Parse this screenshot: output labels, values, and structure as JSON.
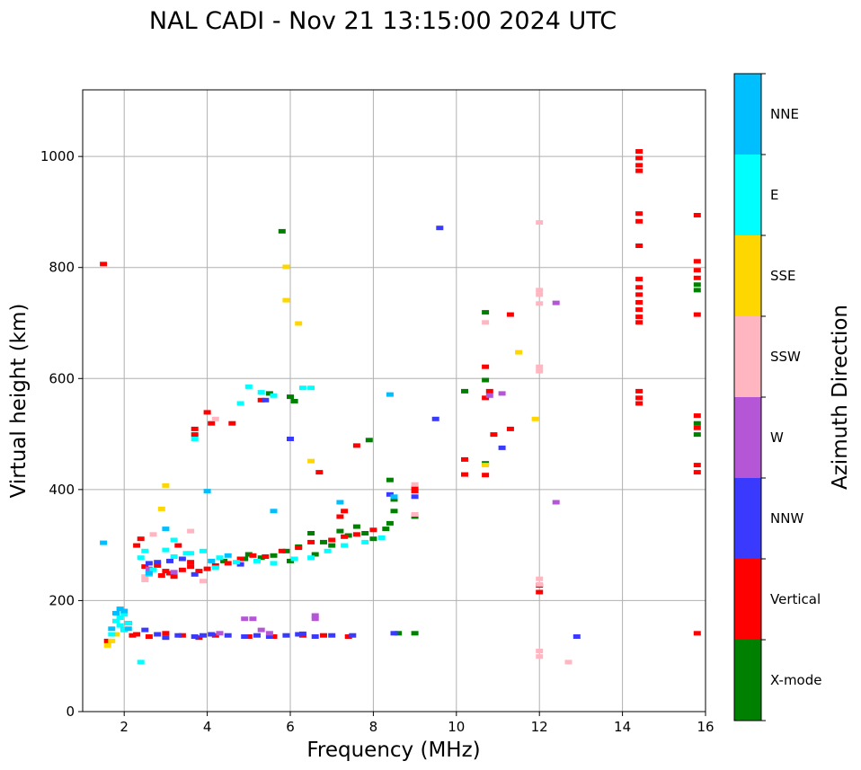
{
  "chart_data": {
    "type": "scatter",
    "title": "NAL CADI - Nov 21 13:15:00 2024 UTC",
    "xlabel": "Frequency (MHz)",
    "ylabel": "Virtual height (km)",
    "xlim": [
      1,
      16
    ],
    "ylim": [
      0,
      1120
    ],
    "xticks": [
      2,
      4,
      6,
      8,
      10,
      12,
      14,
      16
    ],
    "yticks": [
      0,
      200,
      400,
      600,
      800,
      1000
    ],
    "grid": true,
    "colorbar": {
      "title": "Azimuth Direction",
      "categories": [
        {
          "name": "X-mode",
          "color": "#008000"
        },
        {
          "name": "Vertical",
          "color": "#ff0000"
        },
        {
          "name": "NNW",
          "color": "#3a3aff"
        },
        {
          "name": "W",
          "color": "#b456d6"
        },
        {
          "name": "SSW",
          "color": "#ffb6c1"
        },
        {
          "name": "SSE",
          "color": "#ffd700"
        },
        {
          "name": "E",
          "color": "#00ffff"
        },
        {
          "name": "NNE",
          "color": "#00bfff"
        }
      ]
    },
    "series": [
      {
        "name": "X-mode",
        "points": [
          [
            5.8,
            866
          ],
          [
            6.0,
            568
          ],
          [
            6.1,
            560
          ],
          [
            7.9,
            490
          ],
          [
            8.4,
            418
          ],
          [
            8.4,
            340
          ],
          [
            8.5,
            383
          ],
          [
            8.5,
            362
          ],
          [
            9.0,
            352
          ],
          [
            9.0,
            142
          ],
          [
            8.6,
            142
          ],
          [
            10.2,
            578
          ],
          [
            10.7,
            720
          ],
          [
            10.7,
            598
          ],
          [
            10.7,
            448
          ],
          [
            5.5,
            574
          ],
          [
            6.5,
            322
          ],
          [
            6.8,
            306
          ],
          [
            7.2,
            326
          ],
          [
            7.6,
            334
          ],
          [
            8.0,
            312
          ],
          [
            8.3,
            330
          ],
          [
            7.0,
            300
          ],
          [
            6.2,
            298
          ],
          [
            5.9,
            290
          ],
          [
            5.3,
            278
          ],
          [
            4.9,
            276
          ],
          [
            4.4,
            272
          ],
          [
            5.0,
            284
          ],
          [
            5.6,
            282
          ],
          [
            6.0,
            272
          ],
          [
            6.6,
            284
          ],
          [
            7.4,
            318
          ],
          [
            7.8,
            322
          ],
          [
            15.8,
            770
          ],
          [
            15.8,
            760
          ],
          [
            15.8,
            520
          ],
          [
            15.8,
            500
          ]
        ]
      },
      {
        "name": "Vertical",
        "points": [
          [
            1.5,
            807
          ],
          [
            2.3,
            300
          ],
          [
            2.4,
            312
          ],
          [
            2.5,
            262
          ],
          [
            2.6,
            250
          ],
          [
            2.8,
            264
          ],
          [
            2.9,
            246
          ],
          [
            3.0,
            254
          ],
          [
            3.1,
            250
          ],
          [
            3.2,
            244
          ],
          [
            3.4,
            256
          ],
          [
            3.6,
            262
          ],
          [
            3.8,
            254
          ],
          [
            4.0,
            258
          ],
          [
            4.2,
            264
          ],
          [
            4.5,
            268
          ],
          [
            4.8,
            276
          ],
          [
            5.1,
            282
          ],
          [
            5.4,
            280
          ],
          [
            5.8,
            290
          ],
          [
            6.2,
            296
          ],
          [
            6.5,
            306
          ],
          [
            7.0,
            310
          ],
          [
            7.3,
            316
          ],
          [
            7.6,
            320
          ],
          [
            8.0,
            328
          ],
          [
            3.3,
            300
          ],
          [
            3.6,
            270
          ],
          [
            4.1,
            520
          ],
          [
            4.0,
            540
          ],
          [
            3.7,
            510
          ],
          [
            3.7,
            500
          ],
          [
            4.6,
            520
          ],
          [
            5.3,
            562
          ],
          [
            6.7,
            432
          ],
          [
            7.6,
            480
          ],
          [
            7.3,
            362
          ],
          [
            7.2,
            352
          ],
          [
            9.0,
            404
          ],
          [
            9.0,
            398
          ],
          [
            10.2,
            428
          ],
          [
            10.2,
            455
          ],
          [
            10.7,
            622
          ],
          [
            10.7,
            566
          ],
          [
            10.8,
            578
          ],
          [
            10.7,
            427
          ],
          [
            10.9,
            500
          ],
          [
            11.3,
            716
          ],
          [
            11.3,
            510
          ],
          [
            12.0,
            216
          ],
          [
            12.0,
            228
          ],
          [
            14.4,
            1010
          ],
          [
            14.4,
            998
          ],
          [
            14.4,
            985
          ],
          [
            14.4,
            975
          ],
          [
            14.4,
            898
          ],
          [
            14.4,
            884
          ],
          [
            14.4,
            840
          ],
          [
            14.4,
            780
          ],
          [
            14.4,
            765
          ],
          [
            14.4,
            752
          ],
          [
            14.4,
            738
          ],
          [
            14.4,
            725
          ],
          [
            14.4,
            712
          ],
          [
            14.4,
            702
          ],
          [
            14.4,
            578
          ],
          [
            14.4,
            566
          ],
          [
            14.4,
            556
          ],
          [
            15.8,
            895
          ],
          [
            15.8,
            812
          ],
          [
            15.8,
            796
          ],
          [
            15.8,
            782
          ],
          [
            15.8,
            716
          ],
          [
            15.8,
            534
          ],
          [
            15.8,
            512
          ],
          [
            15.8,
            445
          ],
          [
            15.8,
            432
          ],
          [
            15.8,
            142
          ],
          [
            2.0,
            148
          ],
          [
            2.3,
            140
          ],
          [
            2.6,
            136
          ],
          [
            3.0,
            142
          ],
          [
            3.4,
            138
          ],
          [
            3.8,
            134
          ],
          [
            4.2,
            138
          ],
          [
            5.0,
            136
          ],
          [
            5.6,
            136
          ],
          [
            6.3,
            138
          ],
          [
            6.8,
            138
          ],
          [
            7.4,
            136
          ],
          [
            1.6,
            128
          ],
          [
            2.1,
            160
          ],
          [
            2.2,
            138
          ]
        ]
      },
      {
        "name": "NNW",
        "points": [
          [
            2.5,
            148
          ],
          [
            2.8,
            140
          ],
          [
            3.0,
            134
          ],
          [
            3.3,
            138
          ],
          [
            3.7,
            136
          ],
          [
            4.1,
            140
          ],
          [
            4.5,
            138
          ],
          [
            4.9,
            136
          ],
          [
            5.2,
            138
          ],
          [
            5.5,
            136
          ],
          [
            5.9,
            138
          ],
          [
            6.2,
            140
          ],
          [
            6.6,
            136
          ],
          [
            7.0,
            138
          ],
          [
            7.5,
            138
          ],
          [
            8.5,
            142
          ],
          [
            12.9,
            136
          ],
          [
            11.1,
            476
          ],
          [
            9.5,
            528
          ],
          [
            9.6,
            872
          ],
          [
            9.0,
            388
          ],
          [
            8.4,
            392
          ],
          [
            6.0,
            492
          ],
          [
            5.4,
            562
          ],
          [
            3.1,
            272
          ],
          [
            3.4,
            276
          ],
          [
            3.7,
            248
          ],
          [
            4.8,
            266
          ],
          [
            2.6,
            268
          ],
          [
            2.8,
            270
          ],
          [
            6.3,
            141
          ],
          [
            3.9,
            138
          ]
        ]
      },
      {
        "name": "W",
        "points": [
          [
            5.1,
            168
          ],
          [
            4.9,
            168
          ],
          [
            6.6,
            168
          ],
          [
            6.6,
            174
          ],
          [
            5.5,
            142
          ],
          [
            5.3,
            148
          ],
          [
            4.3,
            142
          ],
          [
            11.1,
            574
          ],
          [
            12.4,
            378
          ],
          [
            12.4,
            737
          ],
          [
            10.8,
            570
          ],
          [
            3.2,
            252
          ],
          [
            2.6,
            258
          ]
        ]
      },
      {
        "name": "SSW",
        "points": [
          [
            12.0,
            882
          ],
          [
            12.0,
            760
          ],
          [
            12.0,
            752
          ],
          [
            12.0,
            736
          ],
          [
            12.0,
            622
          ],
          [
            12.0,
            614
          ],
          [
            12.0,
            240
          ],
          [
            12.0,
            230
          ],
          [
            12.0,
            110
          ],
          [
            12.0,
            100
          ],
          [
            12.7,
            90
          ],
          [
            10.7,
            702
          ],
          [
            9.0,
            410
          ],
          [
            9.0,
            356
          ],
          [
            4.2,
            528
          ],
          [
            3.9,
            236
          ],
          [
            2.5,
            238
          ],
          [
            2.5,
            244
          ],
          [
            3.6,
            326
          ],
          [
            2.7,
            320
          ]
        ]
      },
      {
        "name": "SSE",
        "points": [
          [
            5.9,
            802
          ],
          [
            5.9,
            742
          ],
          [
            6.2,
            700
          ],
          [
            6.5,
            452
          ],
          [
            3.0,
            408
          ],
          [
            2.9,
            366
          ],
          [
            1.8,
            140
          ],
          [
            1.7,
            128
          ],
          [
            1.6,
            120
          ],
          [
            11.9,
            528
          ],
          [
            11.5,
            648
          ],
          [
            10.7,
            445
          ]
        ]
      },
      {
        "name": "E",
        "points": [
          [
            2.0,
            148
          ],
          [
            1.9,
            156
          ],
          [
            1.8,
            164
          ],
          [
            1.9,
            170
          ],
          [
            2.0,
            176
          ],
          [
            1.7,
            140
          ],
          [
            2.1,
            160
          ],
          [
            2.6,
            248
          ],
          [
            2.7,
            256
          ],
          [
            3.0,
            292
          ],
          [
            3.2,
            280
          ],
          [
            3.5,
            286
          ],
          [
            3.9,
            290
          ],
          [
            4.3,
            278
          ],
          [
            4.7,
            270
          ],
          [
            5.2,
            272
          ],
          [
            5.6,
            268
          ],
          [
            6.1,
            276
          ],
          [
            6.5,
            278
          ],
          [
            6.9,
            290
          ],
          [
            7.3,
            300
          ],
          [
            7.8,
            306
          ],
          [
            8.2,
            314
          ],
          [
            4.8,
            556
          ],
          [
            5.0,
            586
          ],
          [
            5.3,
            576
          ],
          [
            5.6,
            570
          ],
          [
            6.3,
            584
          ],
          [
            6.5,
            584
          ],
          [
            3.7,
            492
          ],
          [
            4.2,
            260
          ],
          [
            3.2,
            310
          ],
          [
            2.4,
            278
          ],
          [
            2.5,
            290
          ],
          [
            3.6,
            286
          ],
          [
            2.4,
            90
          ]
        ]
      },
      {
        "name": "NNE",
        "points": [
          [
            1.5,
            305
          ],
          [
            1.8,
            178
          ],
          [
            1.9,
            186
          ],
          [
            2.0,
            182
          ],
          [
            1.7,
            150
          ],
          [
            2.1,
            150
          ],
          [
            3.0,
            330
          ],
          [
            2.6,
            250
          ],
          [
            4.0,
            398
          ],
          [
            8.4,
            572
          ],
          [
            8.5,
            388
          ],
          [
            4.1,
            272
          ],
          [
            4.5,
            282
          ],
          [
            5.6,
            362
          ],
          [
            7.2,
            378
          ]
        ]
      }
    ]
  },
  "colors": {
    "grid": "#b0b0b0",
    "axis": "#000000"
  }
}
